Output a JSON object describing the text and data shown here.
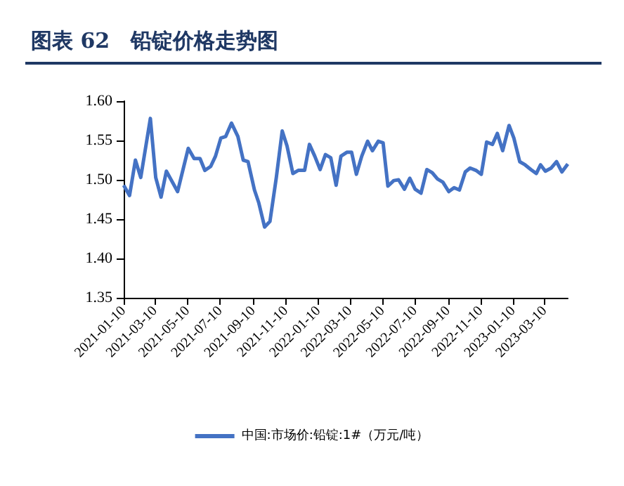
{
  "chart_data": {
    "type": "line",
    "title": "图表 62　铅锭价格走势图",
    "x": [
      "2021-01-10",
      "2021-01-21",
      "2021-02-01",
      "2021-02-11",
      "2021-03-01",
      "2021-03-11",
      "2021-03-21",
      "2021-03-31",
      "2021-04-21",
      "2021-05-11",
      "2021-05-22",
      "2021-06-02",
      "2021-06-11",
      "2021-06-22",
      "2021-07-01",
      "2021-07-11",
      "2021-07-20",
      "2021-07-31",
      "2021-08-12",
      "2021-08-22",
      "2021-08-31",
      "2021-09-12",
      "2021-09-20",
      "2021-10-01",
      "2021-10-11",
      "2021-10-23",
      "2021-11-03",
      "2021-11-12",
      "2021-11-23",
      "2021-12-03",
      "2021-12-15",
      "2021-12-24",
      "2022-01-03",
      "2022-01-13",
      "2022-01-23",
      "2022-02-02",
      "2022-02-12",
      "2022-02-21",
      "2022-03-04",
      "2022-03-13",
      "2022-03-22",
      "2022-04-01",
      "2022-04-12",
      "2022-04-21",
      "2022-05-02",
      "2022-05-11",
      "2022-05-20",
      "2022-05-31",
      "2022-06-09",
      "2022-06-20",
      "2022-06-30",
      "2022-07-10",
      "2022-07-21",
      "2022-08-01",
      "2022-08-11",
      "2022-08-21",
      "2022-08-31",
      "2022-09-11",
      "2022-09-21",
      "2022-10-01",
      "2022-10-12",
      "2022-10-21",
      "2022-11-01",
      "2022-11-11",
      "2022-11-21",
      "2022-12-02",
      "2022-12-11",
      "2022-12-21",
      "2023-01-02",
      "2023-01-11",
      "2023-01-22",
      "2023-02-01",
      "2023-02-12",
      "2023-02-22",
      "2023-03-02",
      "2023-03-11",
      "2023-03-22",
      "2023-04-01",
      "2023-04-11",
      "2023-04-22"
    ],
    "series": [
      {
        "name": "中国:市场价:铅锭:1#（万元/吨）",
        "color": "#4472c4",
        "values": [
          1.493,
          1.48,
          1.525,
          1.503,
          1.578,
          1.503,
          1.478,
          1.511,
          1.485,
          1.54,
          1.527,
          1.527,
          1.512,
          1.517,
          1.53,
          1.553,
          1.555,
          1.572,
          1.555,
          1.525,
          1.523,
          1.487,
          1.471,
          1.44,
          1.447,
          1.503,
          1.562,
          1.543,
          1.508,
          1.512,
          1.512,
          1.545,
          1.53,
          1.513,
          1.532,
          1.528,
          1.493,
          1.53,
          1.535,
          1.535,
          1.507,
          1.53,
          1.549,
          1.537,
          1.549,
          1.547,
          1.492,
          1.499,
          1.5,
          1.488,
          1.502,
          1.488,
          1.483,
          1.513,
          1.509,
          1.501,
          1.497,
          1.485,
          1.49,
          1.487,
          1.51,
          1.515,
          1.512,
          1.507,
          1.548,
          1.545,
          1.559,
          1.537,
          1.569,
          1.553,
          1.523,
          1.519,
          1.513,
          1.508,
          1.519,
          1.511,
          1.515,
          1.523,
          1.51,
          1.52
        ]
      }
    ],
    "xlim": [
      "2021-01-10",
      "2023-04-22"
    ],
    "xticks": [
      "2021-01-10",
      "2021-03-10",
      "2021-05-10",
      "2021-07-10",
      "2021-09-10",
      "2021-11-10",
      "2022-01-10",
      "2022-03-10",
      "2022-05-10",
      "2022-07-10",
      "2022-09-10",
      "2022-11-10",
      "2023-01-10",
      "2023-03-10"
    ],
    "ylim": [
      1.35,
      1.6
    ],
    "yticks": [
      {
        "value": 1.35,
        "label": "1.35"
      },
      {
        "value": 1.4,
        "label": "1.40"
      },
      {
        "value": 1.45,
        "label": "1.45"
      },
      {
        "value": 1.5,
        "label": "1.50"
      },
      {
        "value": 1.55,
        "label": "1.55"
      },
      {
        "value": 1.6,
        "label": "1.60"
      }
    ],
    "grid": false,
    "legend": "bottom",
    "marker": "none",
    "line_style": "solid"
  }
}
